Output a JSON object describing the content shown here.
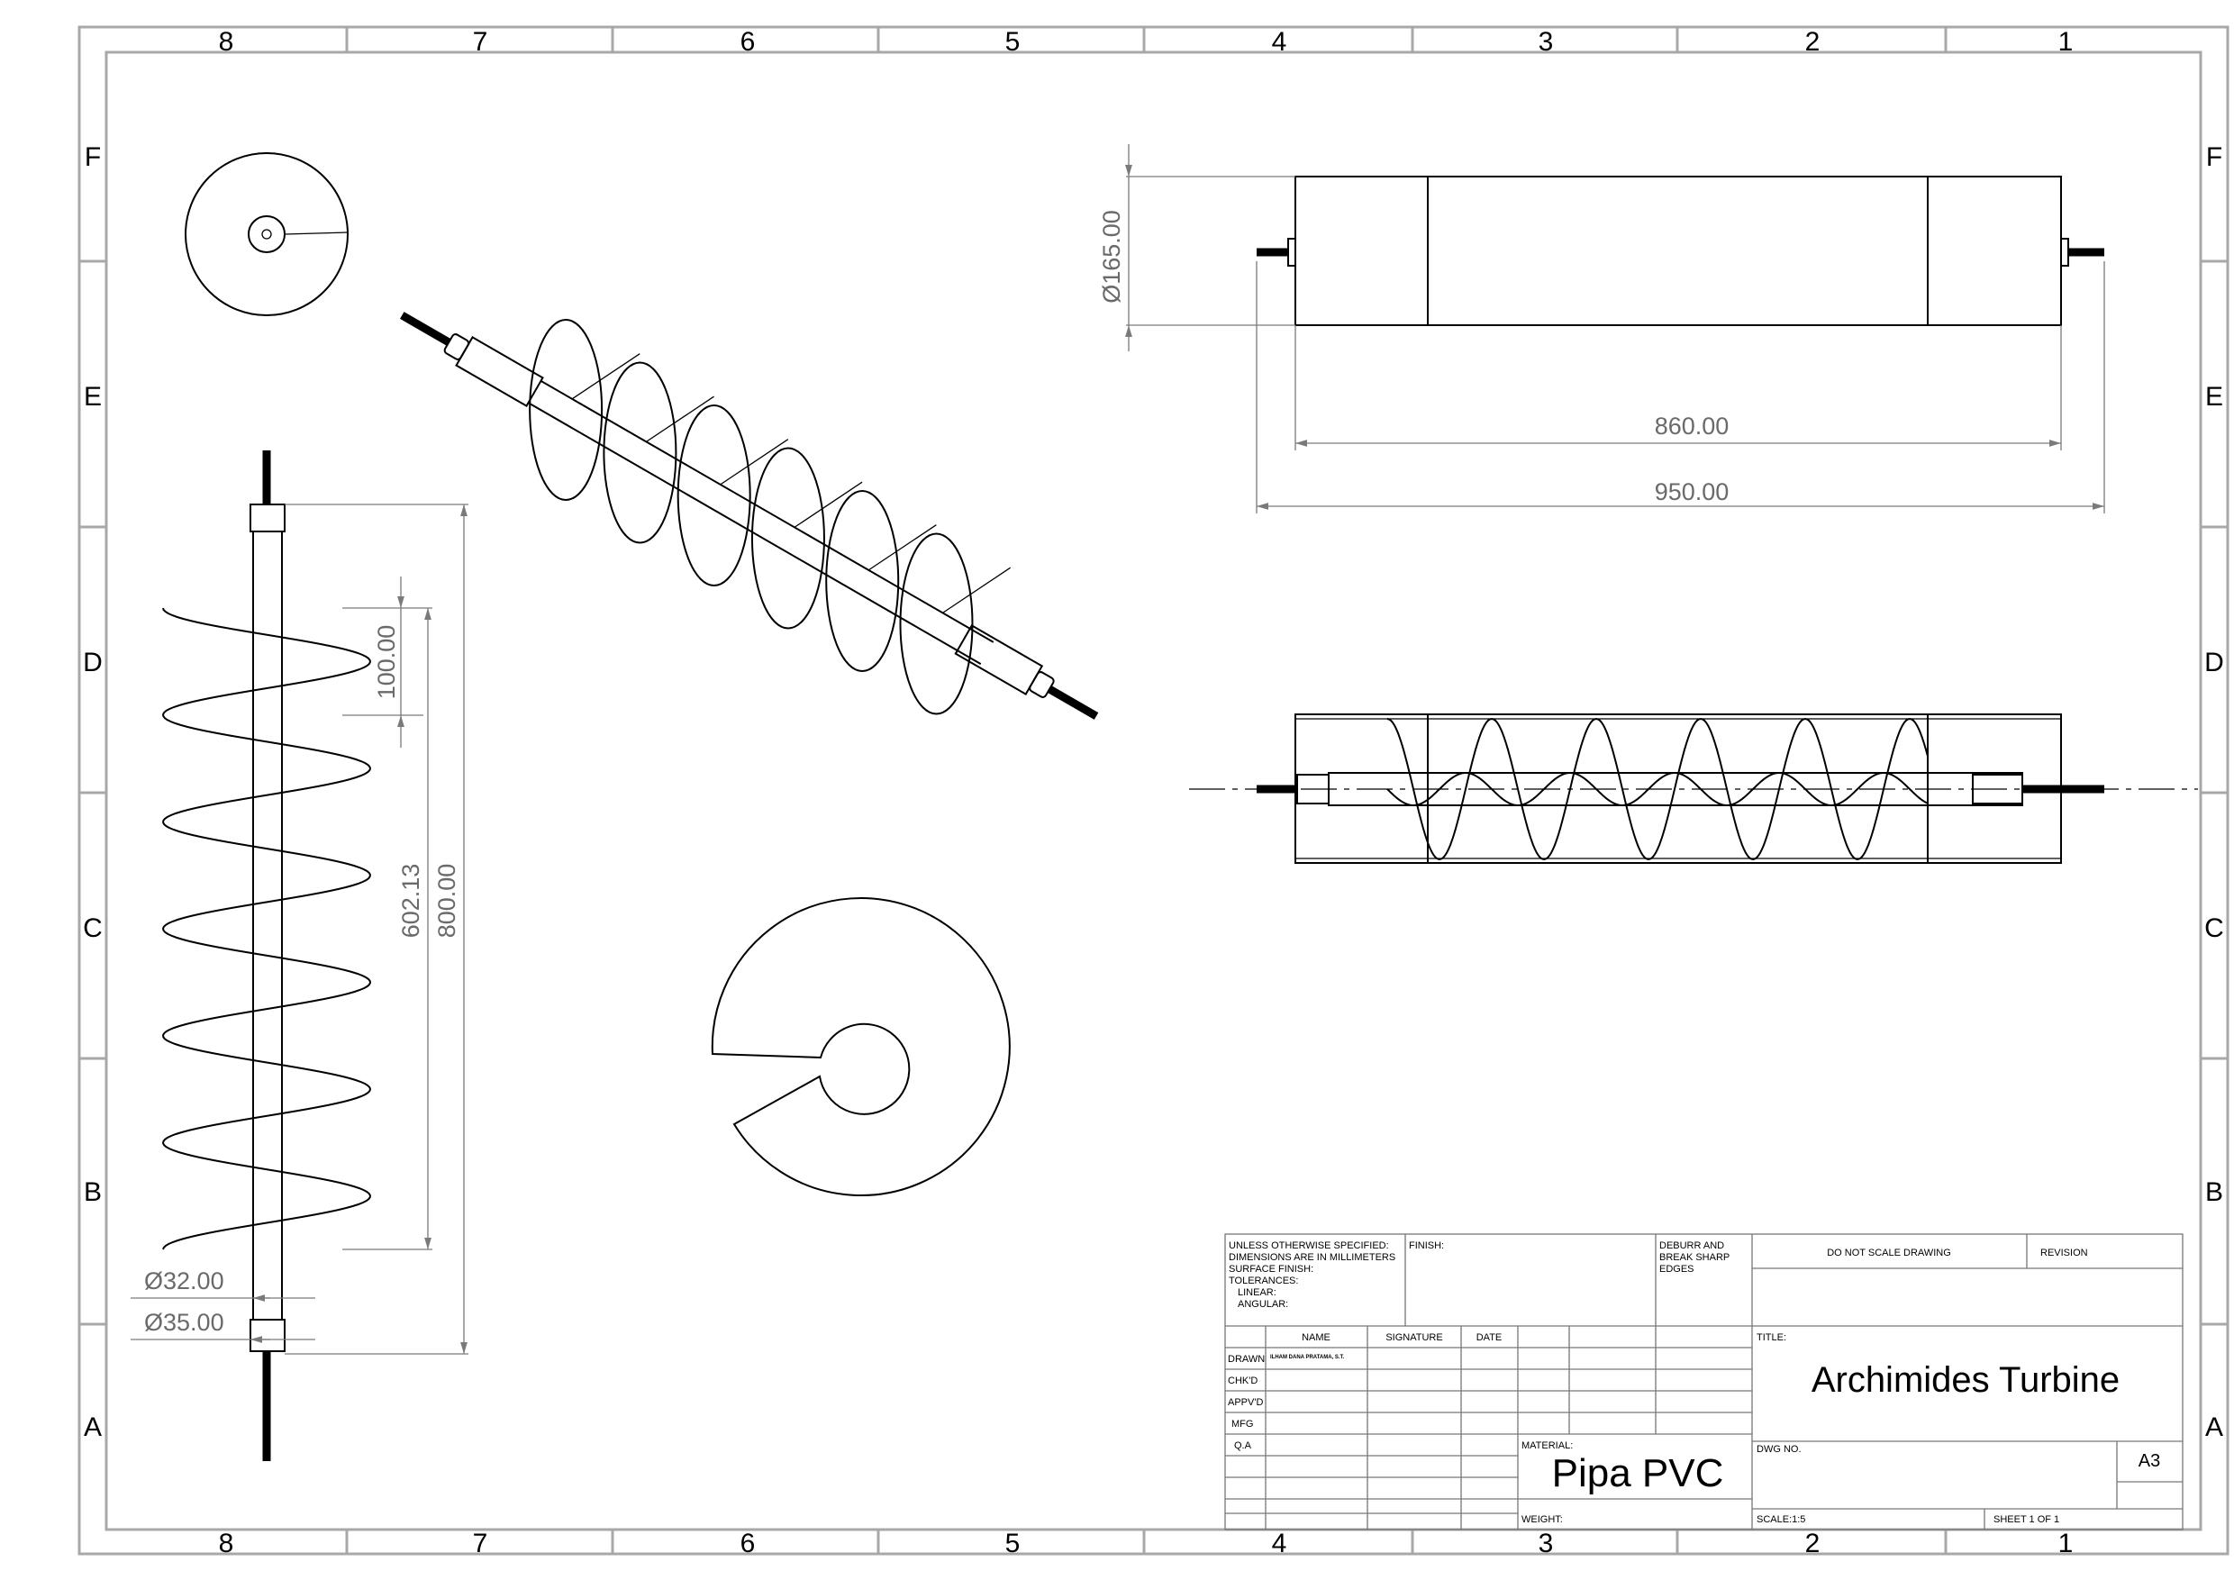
{
  "zones": {
    "columns": [
      "8",
      "7",
      "6",
      "5",
      "4",
      "3",
      "2",
      "1"
    ],
    "rows": [
      "F",
      "E",
      "D",
      "C",
      "B",
      "A"
    ]
  },
  "dimensions": {
    "diameter_165": "165.00",
    "length_860": "860.00",
    "length_950": "950.00",
    "pitch_100": "100.00",
    "spiral_602": "602.13",
    "total_800": "800.00",
    "dia_32": "32.00",
    "dia_35": "35.00",
    "diameter_symbol": "Ø"
  },
  "title_block": {
    "tolerance_note": [
      "UNLESS OTHERWISE SPECIFIED:",
      "DIMENSIONS ARE IN MILLIMETERS",
      "SURFACE FINISH:",
      "TOLERANCES:",
      "LINEAR:",
      "ANGULAR:"
    ],
    "finish_label": "FINISH:",
    "deburr_note": [
      "DEBURR AND",
      "BREAK SHARP",
      "EDGES"
    ],
    "do_not_scale": "DO NOT SCALE DRAWING",
    "revision_label": "REVISION",
    "col_name": "NAME",
    "col_signature": "SIGNATURE",
    "col_date": "DATE",
    "rows": [
      "DRAWN",
      "CHK'D",
      "APPV'D",
      "MFG",
      "Q.A"
    ],
    "drawn_name": "ILHAM DANA PRATAMA, S.T.",
    "title_label": "TITLE:",
    "title": "Archimides Turbine",
    "material_label": "MATERIAL:",
    "material": "Pipa PVC",
    "dwg_no_label": "DWG NO.",
    "sheet_size": "A3",
    "weight_label": "WEIGHT:",
    "scale": "SCALE:1:5",
    "sheet": "SHEET 1 OF 1"
  }
}
